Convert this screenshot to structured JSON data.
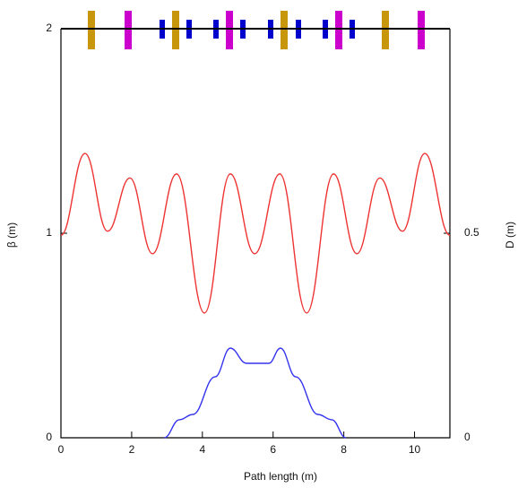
{
  "chart_data": {
    "type": "line",
    "xlabel": "Path length (m)",
    "ylabel": "β (m)",
    "y2label": "D (m)",
    "xlim": [
      0,
      11
    ],
    "xticks": [
      0,
      2,
      4,
      6,
      8,
      10
    ],
    "ylim": [
      0,
      2
    ],
    "yticks": [
      0,
      1,
      2
    ],
    "y2lim": [
      0,
      1
    ],
    "y2ticks": [
      0,
      0.5
    ],
    "series": [
      {
        "name": "β",
        "color": "#ee3333",
        "x": [
          0,
          0.68,
          1.32,
          1.95,
          2.59,
          3.27,
          4.06,
          4.79,
          5.48,
          6.19,
          6.95,
          7.71,
          8.37,
          9.02,
          9.66,
          10.29,
          11
        ],
        "values": [
          0.99,
          1.39,
          1.01,
          1.27,
          0.9,
          1.29,
          0.61,
          1.29,
          0.9,
          1.29,
          0.61,
          1.29,
          0.9,
          1.27,
          1.01,
          1.39,
          0.99
        ]
      },
      {
        "name": "D",
        "color": "#3333ee",
        "axis": "y2",
        "x": [
          2.92,
          3.35,
          3.73,
          4.36,
          4.79,
          5.25,
          5.88,
          6.21,
          6.64,
          7.27,
          7.66,
          8.06
        ],
        "values": [
          0,
          0.044,
          0.057,
          0.149,
          0.219,
          0.182,
          0.182,
          0.219,
          0.149,
          0.057,
          0.044,
          0
        ]
      }
    ]
  }
}
